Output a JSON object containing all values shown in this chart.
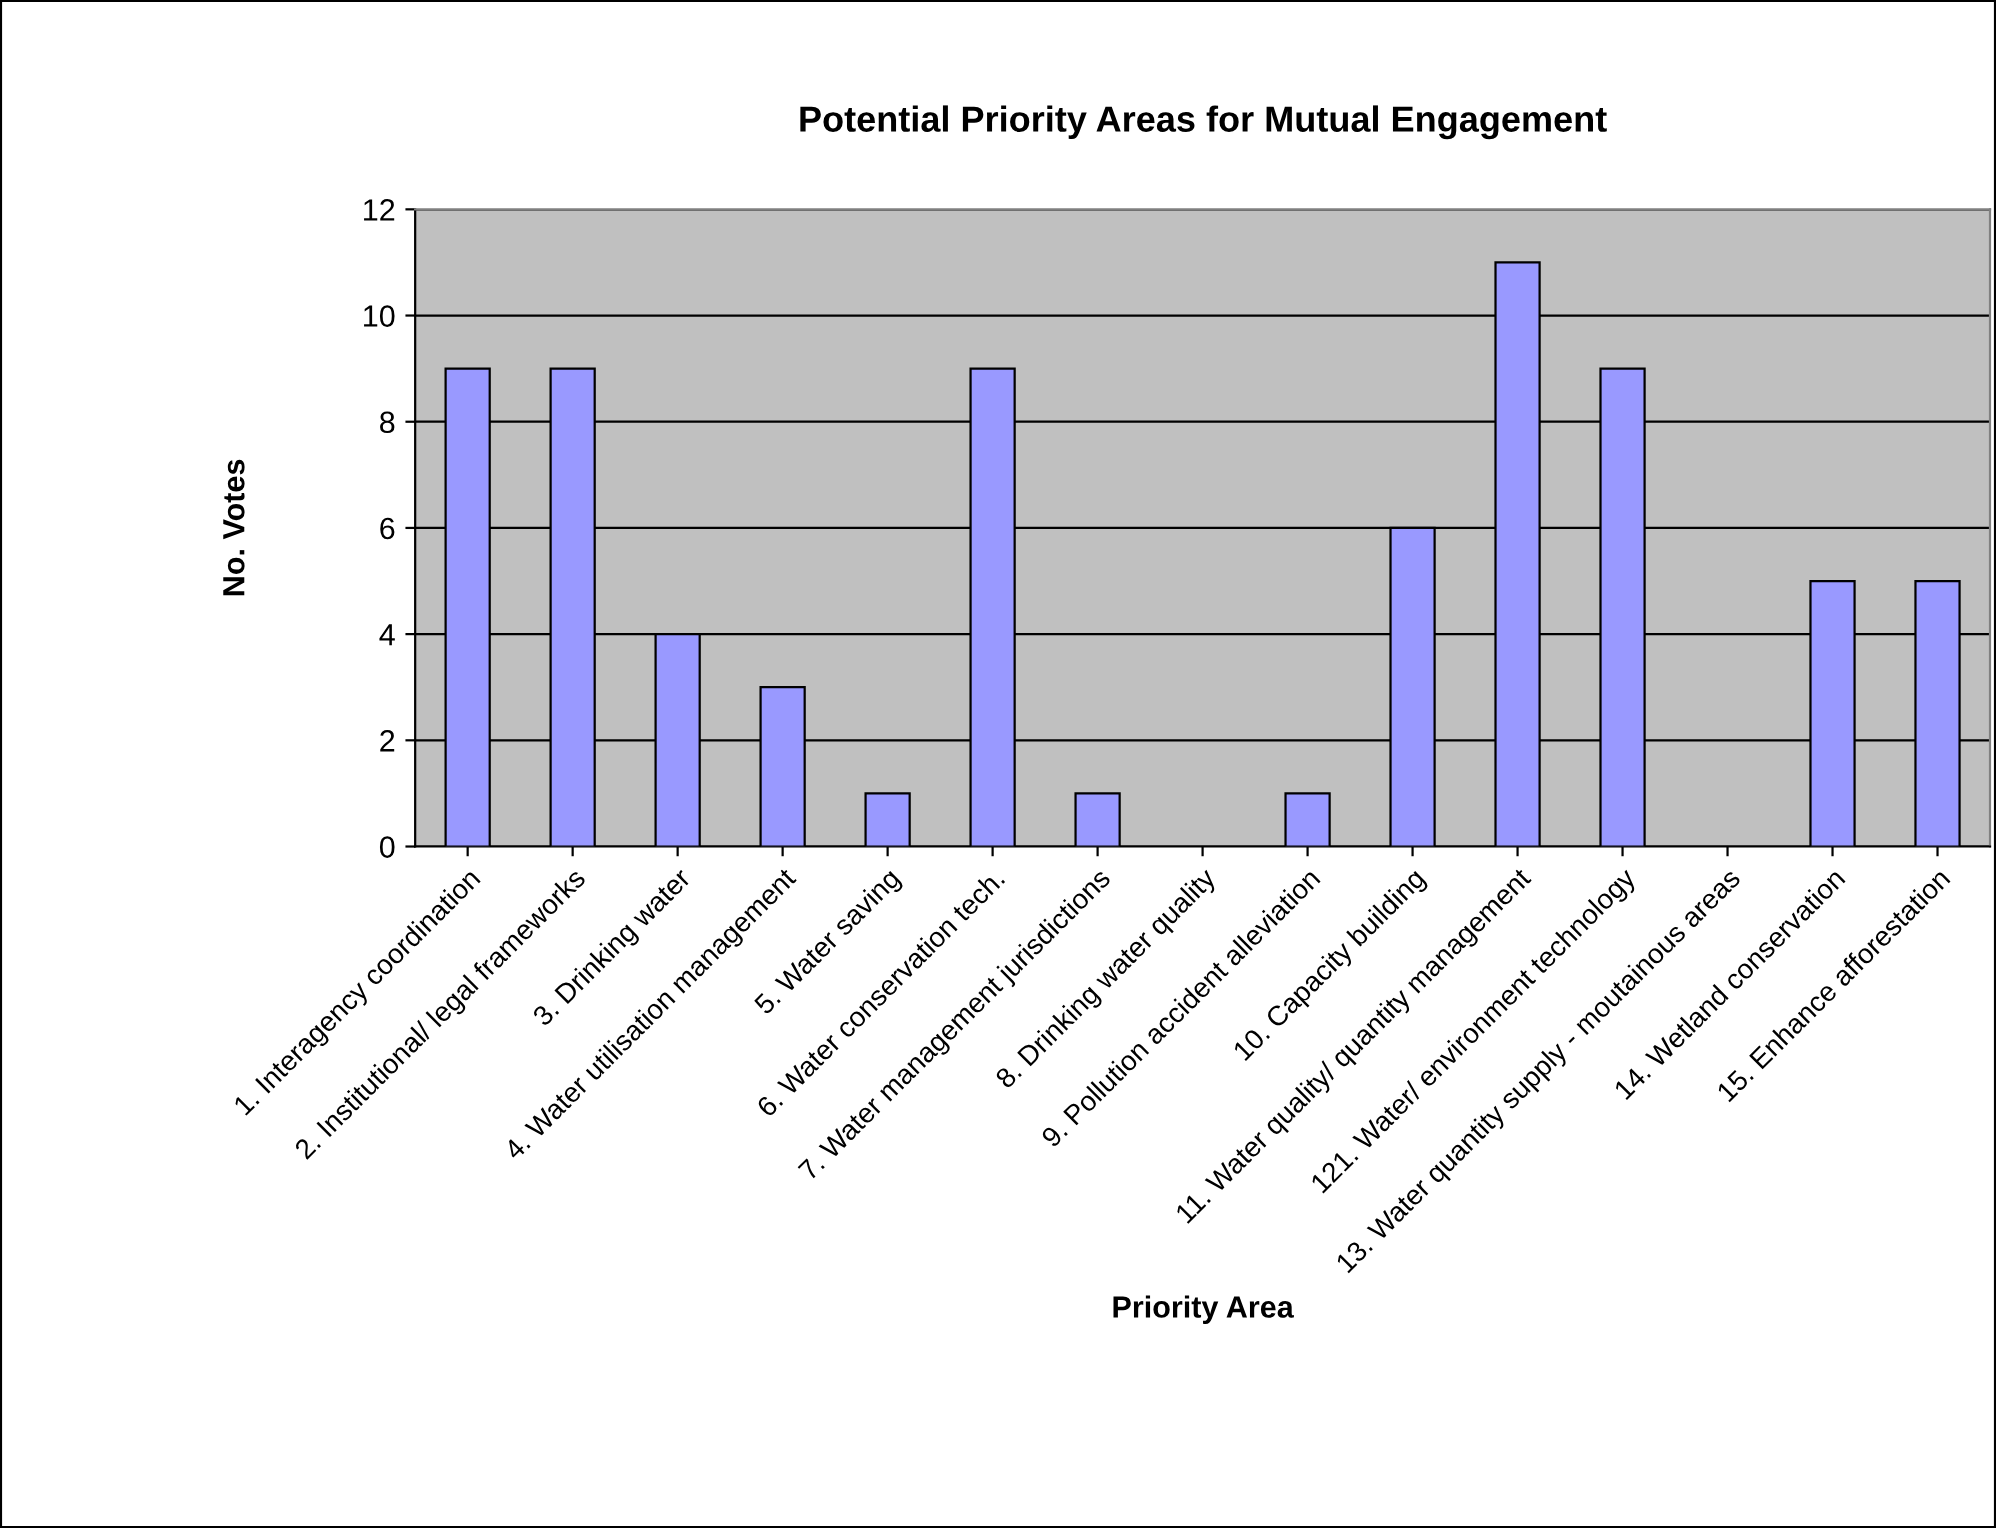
{
  "chart_data": {
    "type": "bar",
    "title": "Potential Priority Areas for Mutual Engagement",
    "xlabel": "Priority Area",
    "ylabel": "No. Votes",
    "categories": [
      "1. Interagency coordination",
      "2. Institutional/ legal frameworks",
      "3. Drinking water",
      "4. Water utilisation management",
      "5. Water saving",
      "6. Water conservation tech.",
      "7. Water management jurisdictions",
      "8. Drinking water quality",
      "9. Pollution accident alleviation",
      "10. Capacity building",
      "11. Water quality/ quantity management",
      "121. Water/ environment technology",
      "13. Water quantity supply - moutainous areas",
      "14. Wetland conservation",
      "15. Enhance afforestation"
    ],
    "values": [
      9,
      9,
      4,
      3,
      1,
      9,
      1,
      0,
      1,
      6,
      11,
      9,
      0,
      5,
      5
    ],
    "color": "#9999ff",
    "ylim": [
      0,
      12
    ],
    "yticks": [
      0,
      2,
      4,
      6,
      8,
      10,
      12
    ],
    "grid": "y",
    "legend": false
  }
}
